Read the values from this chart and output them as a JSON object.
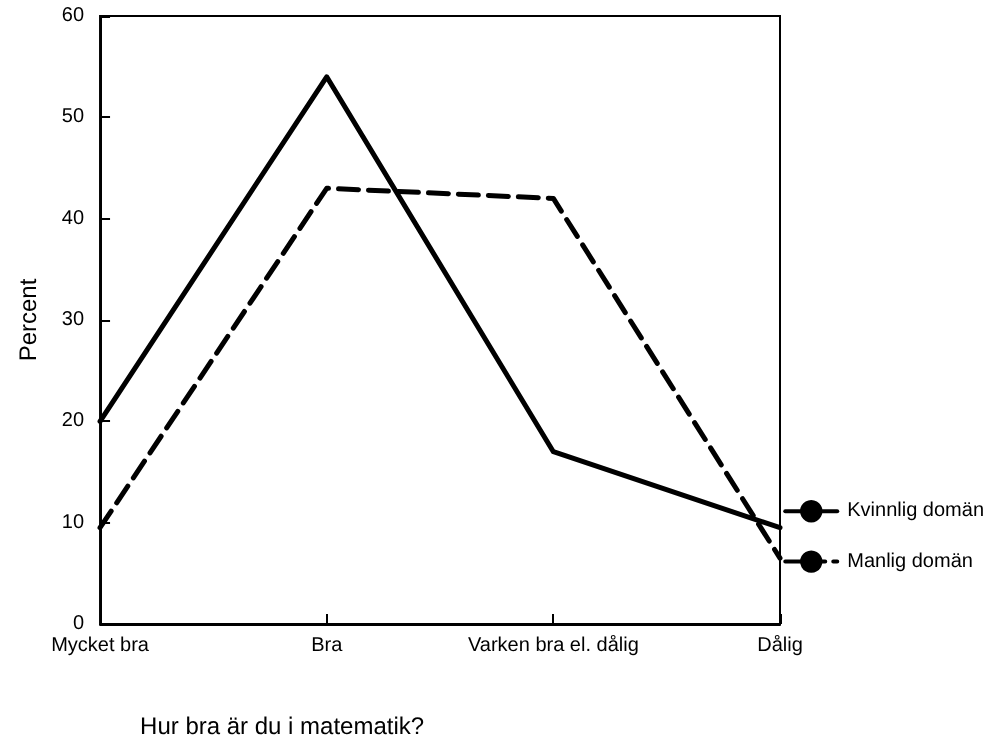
{
  "chart_data": {
    "type": "line",
    "xlabel": "Hur bra är du i matematik?",
    "ylabel": "Percent",
    "categories": [
      "Mycket bra",
      "Bra",
      "Varken bra el. dålig",
      "Dålig"
    ],
    "series": [
      {
        "name": "Kvinnlig domän",
        "color": "#000000",
        "line_style": "solid",
        "values": [
          20,
          54,
          17,
          9.5
        ]
      },
      {
        "name": "Manlig domän",
        "color": "#000000",
        "line_style": "dashed",
        "values": [
          9.5,
          43,
          42,
          6.5
        ]
      }
    ],
    "ylim": [
      0,
      60
    ],
    "yticks": [
      0,
      10,
      20,
      30,
      40,
      50,
      60
    ],
    "grid": false,
    "legend": "right",
    "marker": "none"
  }
}
